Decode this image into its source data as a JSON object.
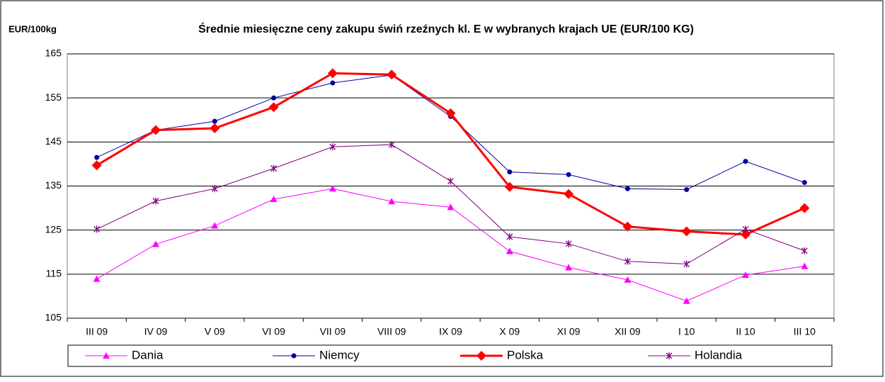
{
  "chart_data": {
    "type": "line",
    "title": "Średnie miesięczne ceny zakupu świń rzeźnych kl. E w wybranych krajach UE (EUR/100 KG)",
    "y_label": "EUR/100kg",
    "categories": [
      "III 09",
      "IV 09",
      "V 09",
      "VI 09",
      "VII 09",
      "VIII 09",
      "IX 09",
      "X 09",
      "XI 09",
      "XII 09",
      "I 10",
      "II 10",
      "III 10"
    ],
    "series": [
      {
        "name": "Dania",
        "color": "#ff00ff",
        "marker": "triangle",
        "values": [
          113.9,
          121.8,
          126,
          132,
          134.4,
          131.5,
          130.2,
          120.2,
          116.5,
          113.7,
          108.9,
          114.8,
          116.8
        ]
      },
      {
        "name": "Niemcy",
        "color": "#0000a0",
        "marker": "circle",
        "values": [
          141.5,
          147.7,
          149.7,
          155,
          158.4,
          160.2,
          150.8,
          138.2,
          137.6,
          134.4,
          134.2,
          140.6,
          135.8
        ]
      },
      {
        "name": "Polska",
        "color": "#ff0000",
        "marker": "diamond",
        "values": [
          139.7,
          147.7,
          148.1,
          152.9,
          160.6,
          160.3,
          151.5,
          134.8,
          133.2,
          125.8,
          124.7,
          124,
          130
        ]
      },
      {
        "name": "Holandia",
        "color": "#800080",
        "marker": "star",
        "values": [
          125.2,
          131.6,
          134.4,
          139,
          143.9,
          144.4,
          136.1,
          123.5,
          121.9,
          117.9,
          117.3,
          125.2,
          120.3
        ]
      }
    ],
    "ylim": [
      105,
      165
    ],
    "yticks": [
      105,
      115,
      125,
      135,
      145,
      155,
      165
    ],
    "grid": true,
    "legend": "bottom"
  }
}
